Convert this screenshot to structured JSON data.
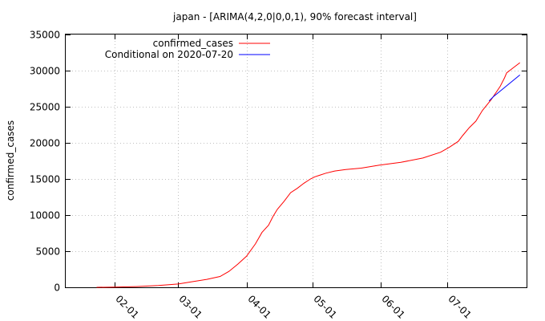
{
  "chart_data": {
    "type": "line",
    "title": "japan -  [ARIMA(4,2,0|0,0,1), 90% forecast interval]",
    "xlabel": "",
    "ylabel": "confirmed_cases",
    "ylim": [
      0,
      35000
    ],
    "yticks": [
      0,
      5000,
      10000,
      15000,
      20000,
      25000,
      30000,
      35000
    ],
    "xlim": [
      -22,
      187
    ],
    "xticks": [
      {
        "day": 0,
        "label": "02-01"
      },
      {
        "day": 29,
        "label": "03-01"
      },
      {
        "day": 60,
        "label": "04-01"
      },
      {
        "day": 90,
        "label": "05-01"
      },
      {
        "day": 121,
        "label": "06-01"
      },
      {
        "day": 151,
        "label": "07-01"
      }
    ],
    "grid": true,
    "legend_position": "top-left",
    "series": [
      {
        "name": "confirmed_cases",
        "color": "#ff0000",
        "x": [
          -8,
          0,
          10,
          20,
          29,
          36,
          42,
          48,
          52,
          56,
          60,
          64,
          67,
          70,
          72,
          74,
          77,
          80,
          83,
          86,
          89,
          91,
          93,
          96,
          100,
          105,
          112,
          120,
          130,
          140,
          148,
          152,
          156,
          158,
          161,
          164,
          167,
          171,
          175,
          177,
          178,
          181,
          184
        ],
        "y": [
          0,
          20,
          100,
          250,
          450,
          800,
          1100,
          1500,
          2200,
          3200,
          4300,
          6000,
          7600,
          8600,
          9800,
          10800,
          11900,
          13100,
          13700,
          14400,
          15000,
          15300,
          15500,
          15800,
          16100,
          16300,
          16500,
          16900,
          17300,
          17900,
          18700,
          19400,
          20200,
          21000,
          22100,
          23000,
          24500,
          26000,
          27800,
          29000,
          29700,
          30400,
          31100
        ]
      },
      {
        "name": "Conditional on 2020-07-20",
        "color": "#0000ff",
        "x": [
          170,
          172,
          174,
          176,
          178,
          180,
          182,
          184
        ],
        "y": [
          25800,
          26400,
          26900,
          27400,
          27900,
          28400,
          28900,
          29400
        ]
      }
    ]
  }
}
